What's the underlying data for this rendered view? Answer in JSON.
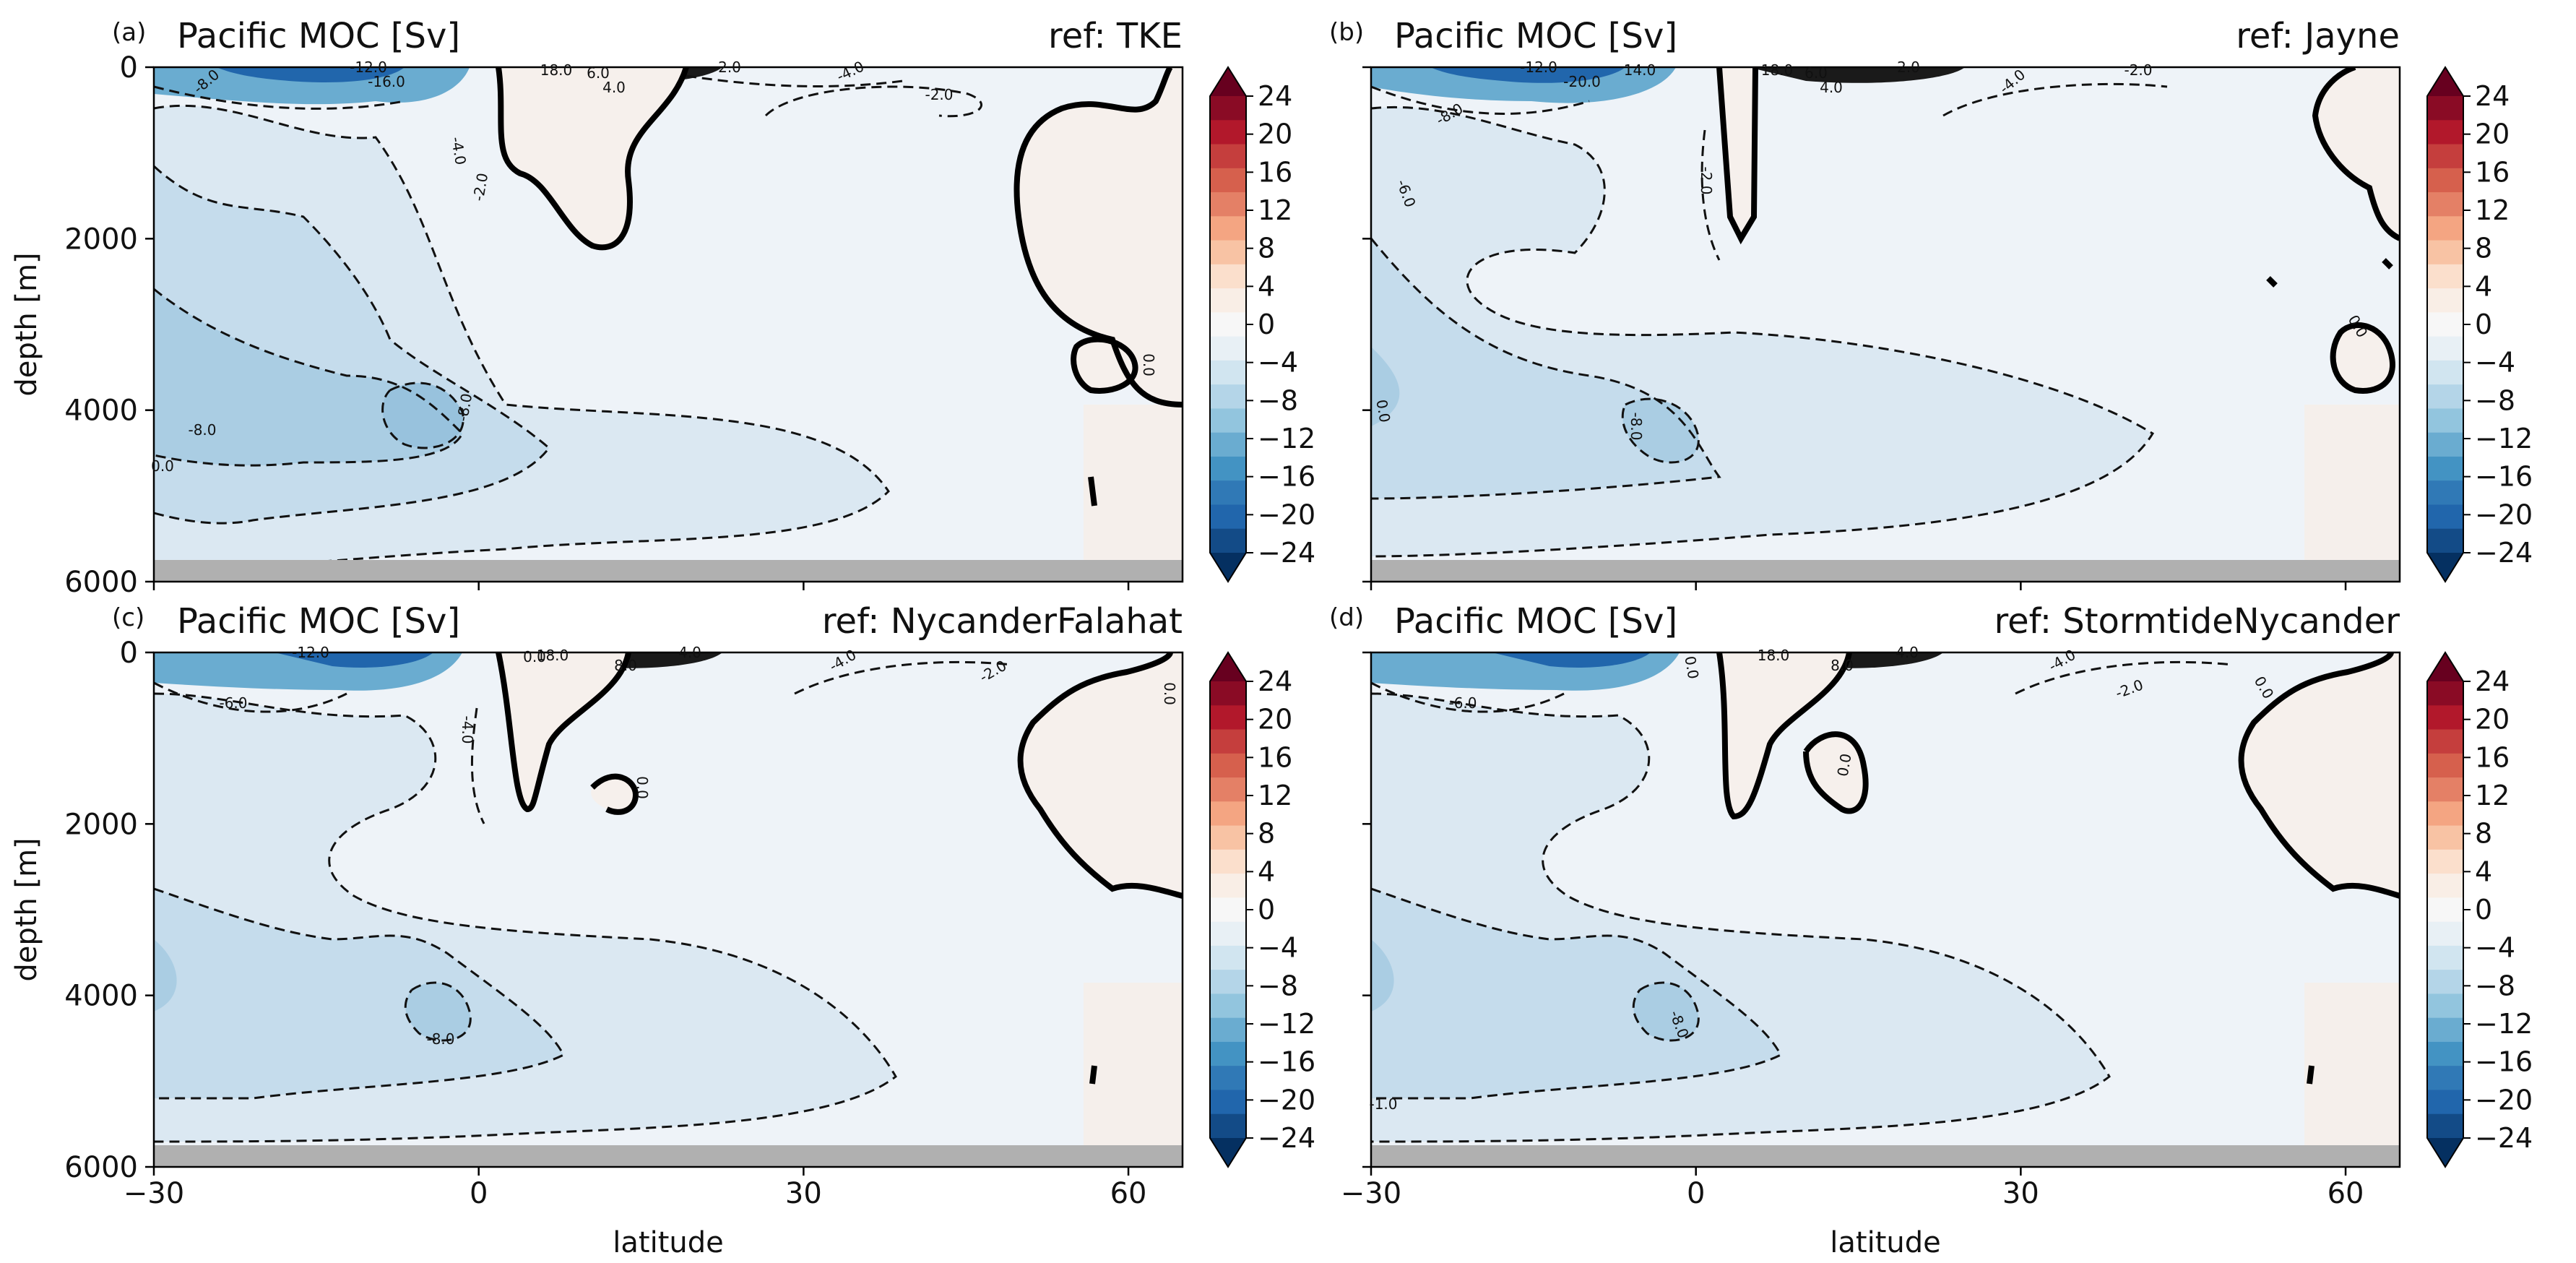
{
  "figure": {
    "ylabel": "depth [m]",
    "xlabel": "latitude",
    "xticks": [
      "−30",
      "0",
      "30",
      "60"
    ],
    "yticks": [
      "0",
      "2000",
      "4000",
      "6000"
    ]
  },
  "colorbar": {
    "ticks": [
      "24",
      "20",
      "16",
      "12",
      "8",
      "4",
      "0",
      "−4",
      "−8",
      "−12",
      "−16",
      "−20",
      "−24"
    ],
    "colors": [
      "#67001f",
      "#8a0b25",
      "#b2182b",
      "#c53e3d",
      "#d6604d",
      "#e48066",
      "#f4a582",
      "#f8c3a4",
      "#fbdfcc",
      "#f9eee6",
      "#f7f7f7",
      "#e8f0f5",
      "#d1e5f0",
      "#b4d5e8",
      "#92c5de",
      "#6aacd0",
      "#4393c3",
      "#3079b6",
      "#2166ac",
      "#134b87",
      "#053061"
    ]
  },
  "chart_data": [
    {
      "type": "contour",
      "panel": "(a)",
      "title": "Pacific MOC [Sv]",
      "ref": "ref: TKE",
      "xlim": [
        -30,
        65
      ],
      "ylim": [
        6000,
        0
      ],
      "levels": [
        -24,
        -20,
        -16,
        -12,
        -8,
        -4,
        0,
        4,
        8,
        12,
        16,
        20,
        24
      ],
      "contour_labels": [
        "-8.0",
        "-4.0",
        "-2.0",
        "-8.0",
        "-8.0",
        "0.0",
        "18.0",
        "6.0",
        "4.0",
        "2.0",
        "-4.0",
        "-2.0",
        "-12.0",
        "-16.0",
        "0.0"
      ]
    },
    {
      "type": "contour",
      "panel": "(b)",
      "title": "Pacific MOC [Sv]",
      "ref": "ref: Jayne",
      "xlim": [
        -30,
        65
      ],
      "ylim": [
        6000,
        0
      ],
      "levels": [
        -24,
        -20,
        -16,
        -12,
        -8,
        -4,
        0,
        4,
        8,
        12,
        16,
        20,
        24
      ],
      "contour_labels": [
        "-8.0",
        "-6.0",
        "-2.0",
        "-8.0",
        "0.0",
        "18.0",
        "6.0",
        "4.0",
        "2.0",
        "-4.0",
        "-2.0",
        "-12.0",
        "-20.0",
        "14.0",
        "0.0"
      ]
    },
    {
      "type": "contour",
      "panel": "(c)",
      "title": "Pacific MOC [Sv]",
      "ref": "ref: NycanderFalahat",
      "xlim": [
        -30,
        65
      ],
      "ylim": [
        6000,
        0
      ],
      "levels": [
        -24,
        -20,
        -16,
        -12,
        -8,
        -4,
        0,
        4,
        8,
        12,
        16,
        20,
        24
      ],
      "contour_labels": [
        "-6.0",
        "-4.0",
        "-8.0",
        "0.0",
        "0.0",
        "18.0",
        "8.0",
        "4.0",
        "-4.0",
        "-2.0",
        "-12.0",
        "0.0"
      ]
    },
    {
      "type": "contour",
      "panel": "(d)",
      "title": "Pacific MOC [Sv]",
      "ref": "ref: StormtideNycander",
      "xlim": [
        -30,
        65
      ],
      "ylim": [
        6000,
        0
      ],
      "levels": [
        -24,
        -20,
        -16,
        -12,
        -8,
        -4,
        0,
        4,
        8,
        12,
        16,
        20,
        24
      ],
      "contour_labels": [
        "-6.0",
        "-8.0",
        "0.0",
        "0.0",
        "-1.0",
        "18.0",
        "8.0",
        "4.0",
        "-4.0",
        "-2.0",
        "0.0"
      ]
    }
  ]
}
